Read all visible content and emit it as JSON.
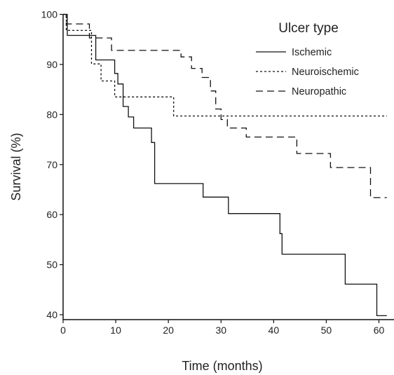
{
  "chart_data": {
    "type": "line",
    "step": true,
    "xlabel": "Time (months)",
    "ylabel": "Survival (%)",
    "xlim": [
      0,
      62
    ],
    "ylim": [
      39,
      100
    ],
    "xticks": [
      0,
      10,
      20,
      30,
      40,
      50,
      60
    ],
    "yticks": [
      40,
      50,
      60,
      70,
      80,
      90,
      100
    ],
    "grid": false,
    "legend": {
      "title": "Ulcer type",
      "placement": "top-right"
    },
    "series": [
      {
        "name": "Ischemic",
        "dash": "solid",
        "x": [
          0,
          0.8,
          5.4,
          6.2,
          9.2,
          9.8,
          10.4,
          11.4,
          12.4,
          13.4,
          16.2,
          16.8,
          17.4,
          26.6,
          31.4,
          41.2,
          41.6,
          53.6,
          59.6,
          61.5
        ],
        "y": [
          100,
          95.8,
          95.8,
          90.9,
          90.9,
          88.2,
          86.1,
          81.6,
          79.5,
          77.3,
          77.3,
          74.4,
          66.2,
          63.5,
          60.2,
          56.2,
          52.1,
          46.1,
          39.8,
          39.8
        ]
      },
      {
        "name": "Neuroischemic",
        "dash": "short-dash",
        "x": [
          0,
          0.6,
          4.2,
          5.4,
          7.2,
          9.8,
          21,
          61.5
        ],
        "y": [
          100,
          96.8,
          96.8,
          90.1,
          86.7,
          83.5,
          79.7,
          79.7
        ]
      },
      {
        "name": "Neuropathic",
        "dash": "long-dash",
        "x": [
          0,
          0.6,
          2.2,
          5,
          9.2,
          13.4,
          22.4,
          24.4,
          26.4,
          28,
          29,
          29.6,
          30,
          31.2,
          34.8,
          44.4,
          50.8,
          58.4,
          61.5
        ],
        "y": [
          100,
          98.1,
          98.1,
          95.3,
          92.8,
          92.8,
          91.5,
          89.2,
          87.4,
          84.7,
          81.1,
          81.1,
          79,
          77.3,
          75.5,
          72.2,
          69.4,
          63.4,
          63.4
        ]
      }
    ]
  }
}
